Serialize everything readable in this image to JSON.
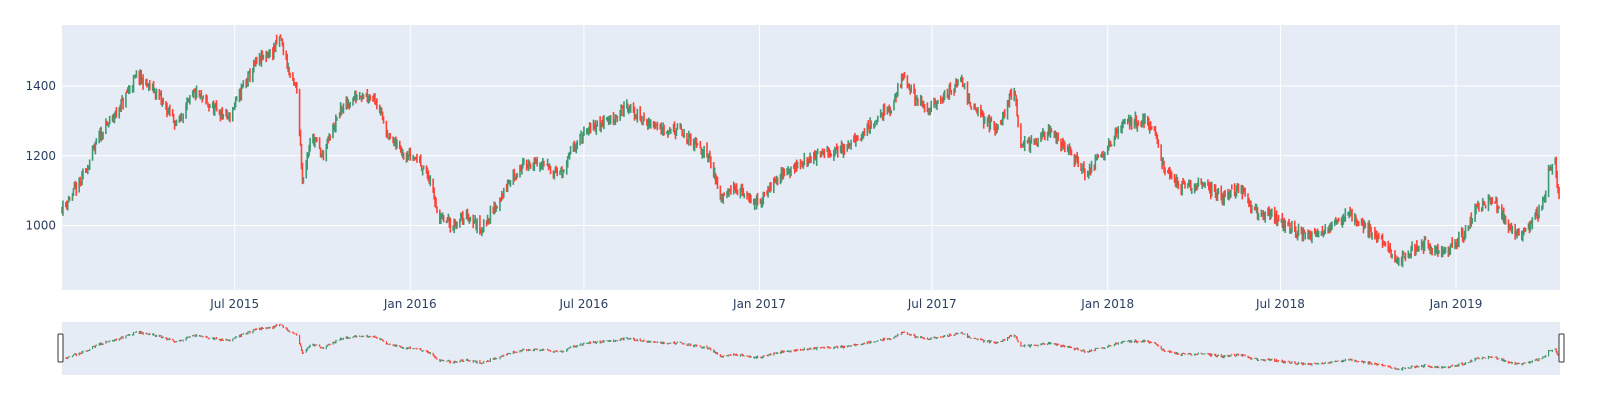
{
  "chart_data": {
    "type": "candlestick",
    "title": "",
    "xlabel": "",
    "ylabel": "",
    "x_range": [
      "2015-01-01",
      "2019-04-20"
    ],
    "ylim": [
      815,
      1575
    ],
    "grid": true,
    "legend": "none",
    "range_slider": true,
    "y_ticks": [
      1000,
      1200,
      1400
    ],
    "x_ticks": [
      {
        "date": "2015-07-01",
        "label": "Jul 2015"
      },
      {
        "date": "2016-01-01",
        "label": "Jan 2016"
      },
      {
        "date": "2016-07-01",
        "label": "Jul 2016"
      },
      {
        "date": "2017-01-01",
        "label": "Jan 2017"
      },
      {
        "date": "2017-07-01",
        "label": "Jul 2017"
      },
      {
        "date": "2018-01-01",
        "label": "Jan 2018"
      },
      {
        "date": "2018-07-01",
        "label": "Jul 2018"
      },
      {
        "date": "2019-01-01",
        "label": "Jan 2019"
      }
    ],
    "colors": {
      "increasing": "#3d9970",
      "decreasing": "#ff4136",
      "plot_bg": "#e5ecf6",
      "grid": "#ffffff",
      "tick_text": "#2a3f5f"
    },
    "series": [
      {
        "type": "close-approx",
        "points": [
          [
            "2015-01-01",
            1050
          ],
          [
            "2015-01-20",
            1120
          ],
          [
            "2015-02-10",
            1260
          ],
          [
            "2015-03-01",
            1330
          ],
          [
            "2015-03-20",
            1430
          ],
          [
            "2015-04-10",
            1380
          ],
          [
            "2015-05-01",
            1290
          ],
          [
            "2015-05-20",
            1380
          ],
          [
            "2015-06-10",
            1330
          ],
          [
            "2015-06-25",
            1310
          ],
          [
            "2015-07-10",
            1400
          ],
          [
            "2015-07-25",
            1470
          ],
          [
            "2015-08-10",
            1500
          ],
          [
            "2015-08-18",
            1540
          ],
          [
            "2015-08-28",
            1430
          ],
          [
            "2015-09-05",
            1380
          ],
          [
            "2015-09-10",
            1130
          ],
          [
            "2015-09-20",
            1260
          ],
          [
            "2015-10-01",
            1200
          ],
          [
            "2015-10-20",
            1330
          ],
          [
            "2015-11-10",
            1380
          ],
          [
            "2015-11-25",
            1370
          ],
          [
            "2015-12-10",
            1250
          ],
          [
            "2015-12-25",
            1210
          ],
          [
            "2016-01-10",
            1190
          ],
          [
            "2016-01-20",
            1140
          ],
          [
            "2016-02-01",
            1020
          ],
          [
            "2016-02-15",
            1000
          ],
          [
            "2016-03-01",
            1030
          ],
          [
            "2016-03-15",
            990
          ],
          [
            "2016-04-01",
            1060
          ],
          [
            "2016-04-15",
            1130
          ],
          [
            "2016-05-01",
            1180
          ],
          [
            "2016-05-20",
            1170
          ],
          [
            "2016-06-10",
            1150
          ],
          [
            "2016-06-20",
            1230
          ],
          [
            "2016-07-10",
            1280
          ],
          [
            "2016-08-01",
            1310
          ],
          [
            "2016-08-15",
            1340
          ],
          [
            "2016-09-01",
            1300
          ],
          [
            "2016-09-20",
            1280
          ],
          [
            "2016-10-10",
            1270
          ],
          [
            "2016-10-25",
            1230
          ],
          [
            "2016-11-10",
            1200
          ],
          [
            "2016-11-20",
            1080
          ],
          [
            "2016-12-01",
            1110
          ],
          [
            "2016-12-15",
            1090
          ],
          [
            "2017-01-01",
            1060
          ],
          [
            "2017-01-15",
            1130
          ],
          [
            "2017-02-01",
            1160
          ],
          [
            "2017-02-15",
            1180
          ],
          [
            "2017-03-01",
            1200
          ],
          [
            "2017-03-20",
            1210
          ],
          [
            "2017-04-10",
            1240
          ],
          [
            "2017-05-01",
            1300
          ],
          [
            "2017-05-20",
            1340
          ],
          [
            "2017-06-01",
            1430
          ],
          [
            "2017-06-10",
            1380
          ],
          [
            "2017-06-25",
            1330
          ],
          [
            "2017-07-10",
            1360
          ],
          [
            "2017-08-01",
            1420
          ],
          [
            "2017-08-10",
            1350
          ],
          [
            "2017-08-25",
            1300
          ],
          [
            "2017-09-10",
            1280
          ],
          [
            "2017-09-25",
            1400
          ],
          [
            "2017-10-01",
            1240
          ],
          [
            "2017-10-15",
            1230
          ],
          [
            "2017-11-01",
            1270
          ],
          [
            "2017-11-20",
            1220
          ],
          [
            "2017-12-10",
            1150
          ],
          [
            "2018-01-01",
            1230
          ],
          [
            "2018-01-20",
            1300
          ],
          [
            "2018-02-10",
            1300
          ],
          [
            "2018-02-20",
            1260
          ],
          [
            "2018-03-01",
            1160
          ],
          [
            "2018-03-20",
            1110
          ],
          [
            "2018-04-10",
            1120
          ],
          [
            "2018-05-01",
            1080
          ],
          [
            "2018-05-20",
            1110
          ],
          [
            "2018-06-01",
            1040
          ],
          [
            "2018-06-20",
            1030
          ],
          [
            "2018-07-10",
            990
          ],
          [
            "2018-08-01",
            970
          ],
          [
            "2018-08-20",
            990
          ],
          [
            "2018-09-10",
            1030
          ],
          [
            "2018-10-01",
            990
          ],
          [
            "2018-10-20",
            940
          ],
          [
            "2018-11-01",
            900
          ],
          [
            "2018-11-15",
            930
          ],
          [
            "2018-12-01",
            950
          ],
          [
            "2018-12-20",
            920
          ],
          [
            "2019-01-10",
            980
          ],
          [
            "2019-01-25",
            1060
          ],
          [
            "2019-02-10",
            1070
          ],
          [
            "2019-02-25",
            1000
          ],
          [
            "2019-03-10",
            970
          ],
          [
            "2019-03-25",
            1020
          ],
          [
            "2019-04-05",
            1090
          ],
          [
            "2019-04-08",
            1170
          ],
          [
            "2019-04-15",
            1180
          ],
          [
            "2019-04-18",
            1100
          ],
          [
            "2019-04-20",
            1060
          ]
        ]
      }
    ]
  }
}
